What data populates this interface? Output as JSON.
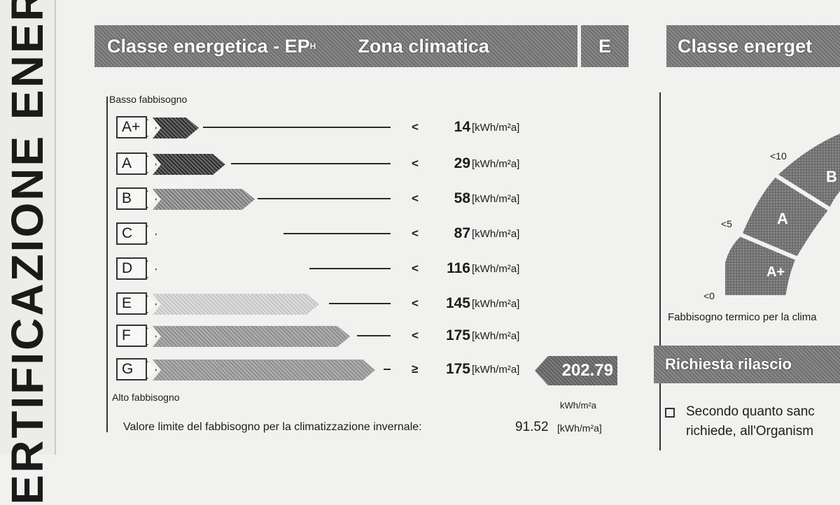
{
  "side_title": "ERTIFICAZIONE ENERG",
  "header": {
    "title_part1": "Classe energetica - EP",
    "title_sub": "H",
    "zone_label": "Zona climatica",
    "zone_value": "E",
    "right_title": "Classe energet"
  },
  "scale": {
    "low_label": "Basso fabbisogno",
    "high_label": "Alto fabbisogno",
    "rows": [
      {
        "cls": "A+",
        "cmp": "<",
        "value": "14",
        "unit": "[kWh/m²a]"
      },
      {
        "cls": "A",
        "cmp": "<",
        "value": "29",
        "unit": "[kWh/m²a]"
      },
      {
        "cls": "B",
        "cmp": "<",
        "value": "58",
        "unit": "[kWh/m²a]"
      },
      {
        "cls": "C",
        "cmp": "<",
        "value": "87",
        "unit": "[kWh/m²a]"
      },
      {
        "cls": "D",
        "cmp": "<",
        "value": "116",
        "unit": "[kWh/m²a]"
      },
      {
        "cls": "E",
        "cmp": "<",
        "value": "145",
        "unit": "[kWh/m²a]"
      },
      {
        "cls": "F",
        "cmp": "<",
        "value": "175",
        "unit": "[kWh/m²a]"
      },
      {
        "cls": "G",
        "cmp": "≥",
        "value": "175",
        "unit": "[kWh/m²a]"
      }
    ],
    "result_value": "202.79",
    "result_unit": "kWh/m²a"
  },
  "limit": {
    "label": "Valore limite del fabbisogno per la climatizzazione invernale:",
    "value": "91.52",
    "unit": "[kWh/m²a]"
  },
  "gauge": {
    "ticks": [
      "<10",
      "<5",
      "<0"
    ],
    "segments": [
      "A+",
      "A",
      "B"
    ],
    "caption": "Fabbisogno termico per la clima"
  },
  "request": {
    "title": "Richiesta rilascio",
    "line1": "Secondo quanto sanc",
    "line2": "richiede,  all'Organism"
  }
}
